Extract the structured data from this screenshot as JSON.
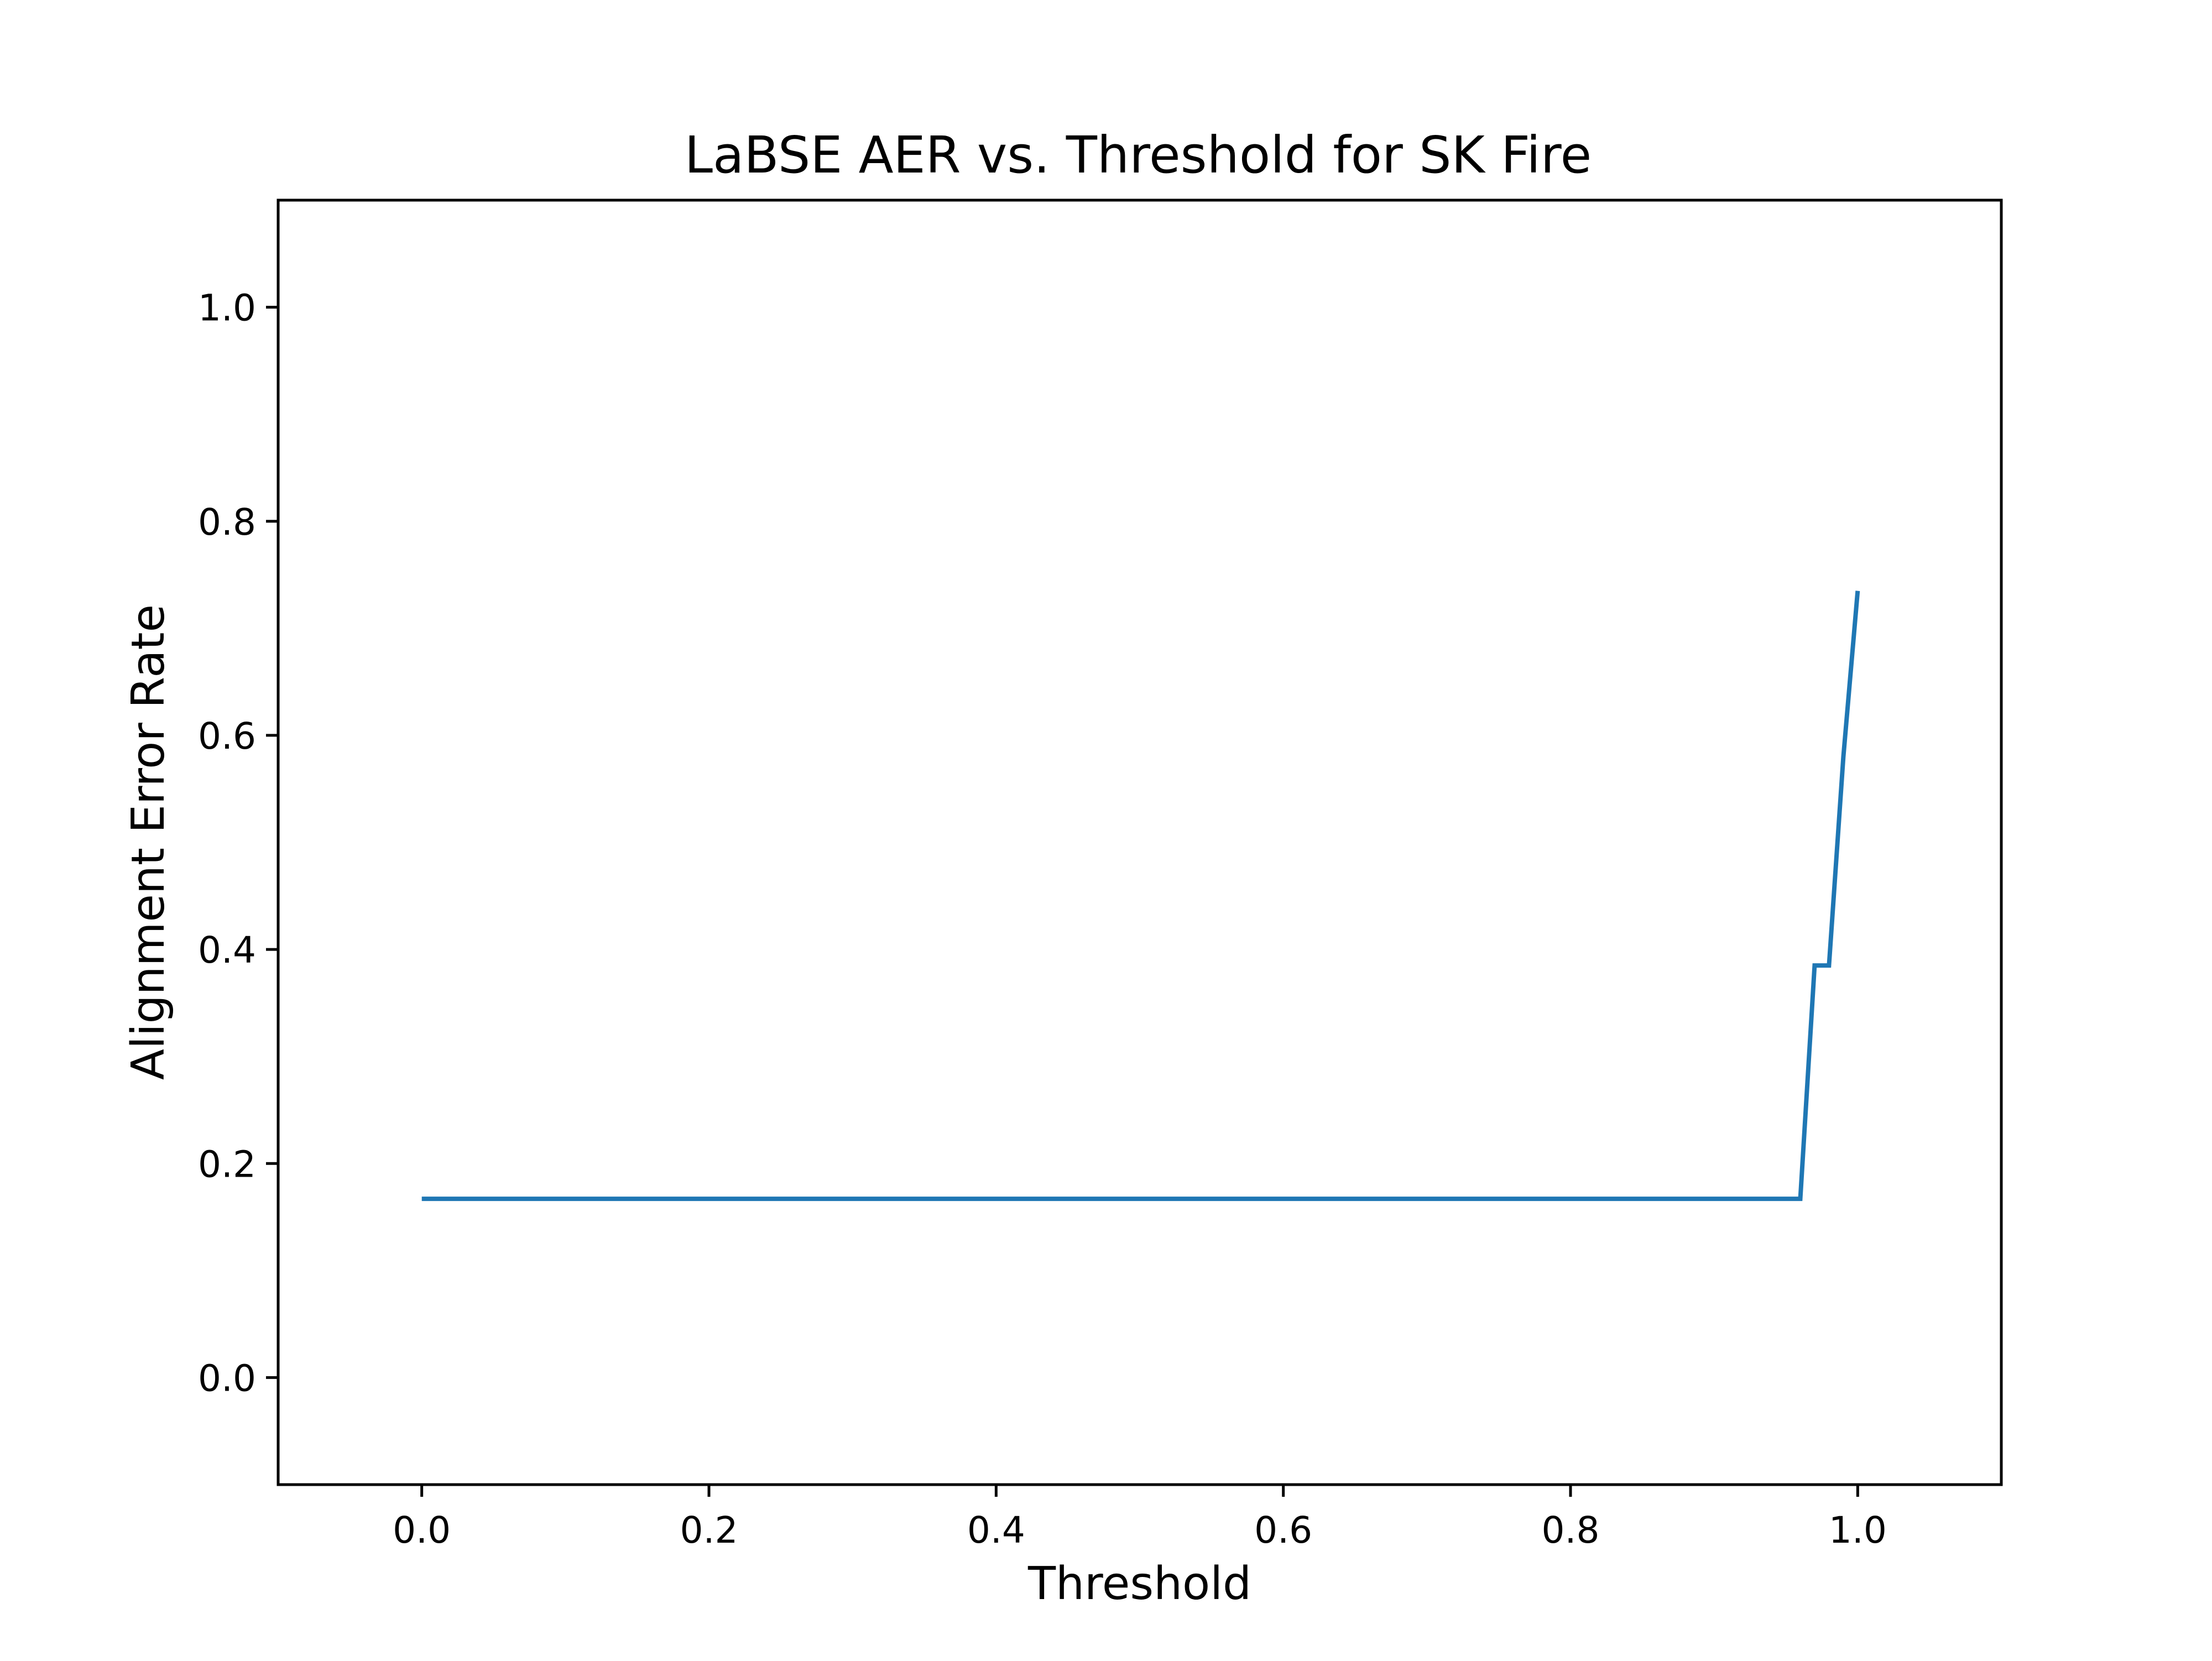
{
  "chart_data": {
    "type": "line",
    "title": "LaBSE AER vs. Threshold for SK Fire",
    "xlabel": "Threshold",
    "ylabel": "Alignment Error Rate",
    "xlim": [
      -0.1,
      1.1
    ],
    "ylim": [
      -0.1,
      1.1
    ],
    "xticks": [
      0.0,
      0.2,
      0.4,
      0.6,
      0.8,
      1.0
    ],
    "yticks": [
      0.0,
      0.2,
      0.4,
      0.6,
      0.8,
      1.0
    ],
    "xtick_labels": [
      "0.0",
      "0.2",
      "0.4",
      "0.6",
      "0.8",
      "1.0"
    ],
    "ytick_labels": [
      "0.0",
      "0.2",
      "0.4",
      "0.6",
      "0.8",
      "1.0"
    ],
    "grid": false,
    "legend": false,
    "series": [
      {
        "color": "#1f77b4",
        "x": [
          0.0,
          0.96,
          0.97,
          0.98,
          0.99,
          1.0
        ],
        "y": [
          0.167,
          0.167,
          0.385,
          0.385,
          0.58,
          0.735
        ]
      }
    ]
  }
}
